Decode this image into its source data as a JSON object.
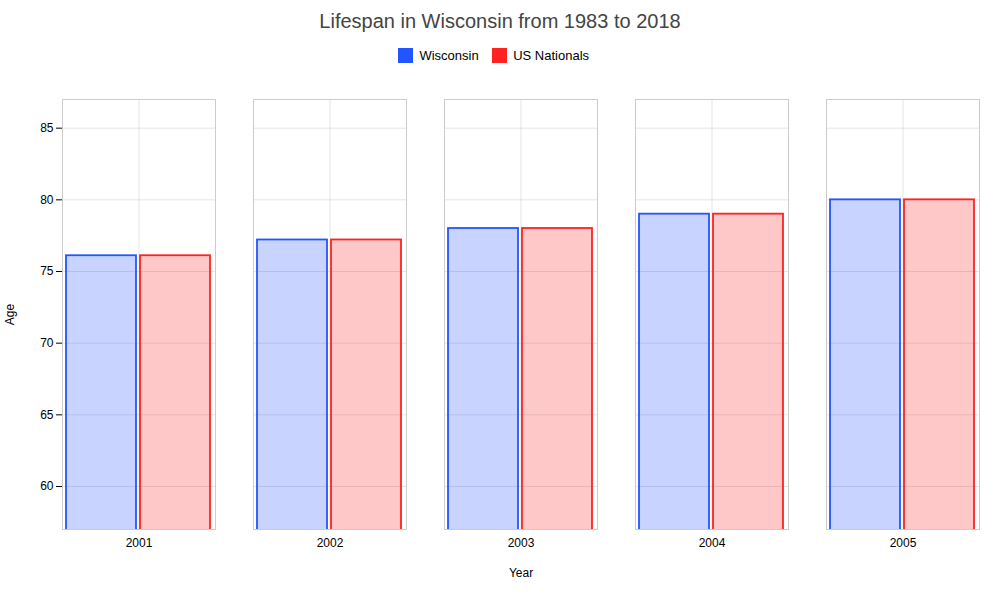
{
  "chart_data": {
    "type": "bar",
    "title": "Lifespan in Wisconsin from 1983 to 2018",
    "xlabel": "Year",
    "ylabel": "Age",
    "categories": [
      "2001",
      "2002",
      "2003",
      "2004",
      "2005"
    ],
    "series": [
      {
        "name": "Wisconsin",
        "color": "#2255ff",
        "values": [
          76.1,
          77.2,
          78.0,
          79.0,
          80.0
        ]
      },
      {
        "name": "US Nationals",
        "color": "#ff2222",
        "values": [
          76.1,
          77.2,
          78.0,
          79.0,
          80.0
        ]
      }
    ],
    "ylim": [
      57,
      87
    ],
    "yticks": [
      60,
      65,
      70,
      75,
      80,
      85
    ],
    "grid": true,
    "legend": "top"
  }
}
